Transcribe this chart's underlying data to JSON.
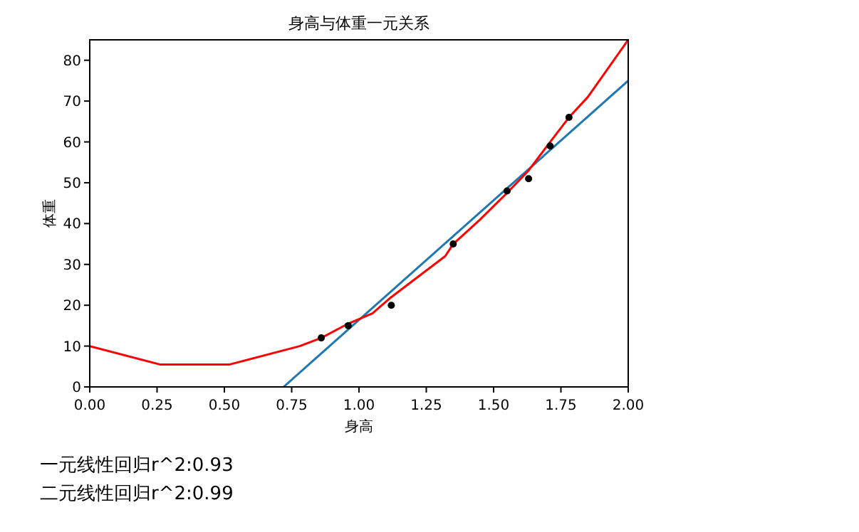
{
  "chart_data": {
    "type": "line",
    "title": "身高与体重一元关系",
    "xlabel": "身高",
    "ylabel": "体重",
    "xlim": [
      0,
      2
    ],
    "ylim": [
      0,
      85
    ],
    "xticks": [
      {
        "value": 0,
        "label": "0.00"
      },
      {
        "value": 0.25,
        "label": "0.25"
      },
      {
        "value": 0.5,
        "label": "0.50"
      },
      {
        "value": 0.75,
        "label": "0.75"
      },
      {
        "value": 1,
        "label": "1.00"
      },
      {
        "value": 1.25,
        "label": "1.25"
      },
      {
        "value": 1.5,
        "label": "1.50"
      },
      {
        "value": 1.75,
        "label": "1.75"
      },
      {
        "value": 2,
        "label": "2.00"
      }
    ],
    "yticks": [
      0,
      10,
      20,
      30,
      40,
      50,
      60,
      70,
      80
    ],
    "grid": false,
    "series": [
      {
        "type": "scatter",
        "marker": "circle",
        "color": "#000000",
        "x": [
          0.86,
          0.96,
          1.12,
          1.35,
          1.55,
          1.63,
          1.71,
          1.78
        ],
        "values": [
          12,
          15,
          20,
          35,
          48,
          51,
          59,
          66
        ]
      },
      {
        "type": "line",
        "color": "#1f77b4",
        "x": [
          0.72,
          2.0
        ],
        "values": [
          0,
          75
        ]
      },
      {
        "type": "line",
        "color": "#ff0000",
        "x": [
          0,
          0.26,
          0.52,
          0.78,
          0.86,
          0.96,
          1.05,
          1.12,
          1.2,
          1.32,
          1.35,
          1.45,
          1.55,
          1.63,
          1.71,
          1.78,
          1.85,
          2.0
        ],
        "values": [
          10,
          5.5,
          5.5,
          10,
          12,
          15.5,
          18,
          22,
          26,
          32,
          35,
          41,
          47.5,
          53,
          60,
          66,
          71,
          85
        ]
      }
    ],
    "annotations": [
      "一元线性回归r^2:0.93",
      "二元线性回归r^2:0.99"
    ]
  }
}
